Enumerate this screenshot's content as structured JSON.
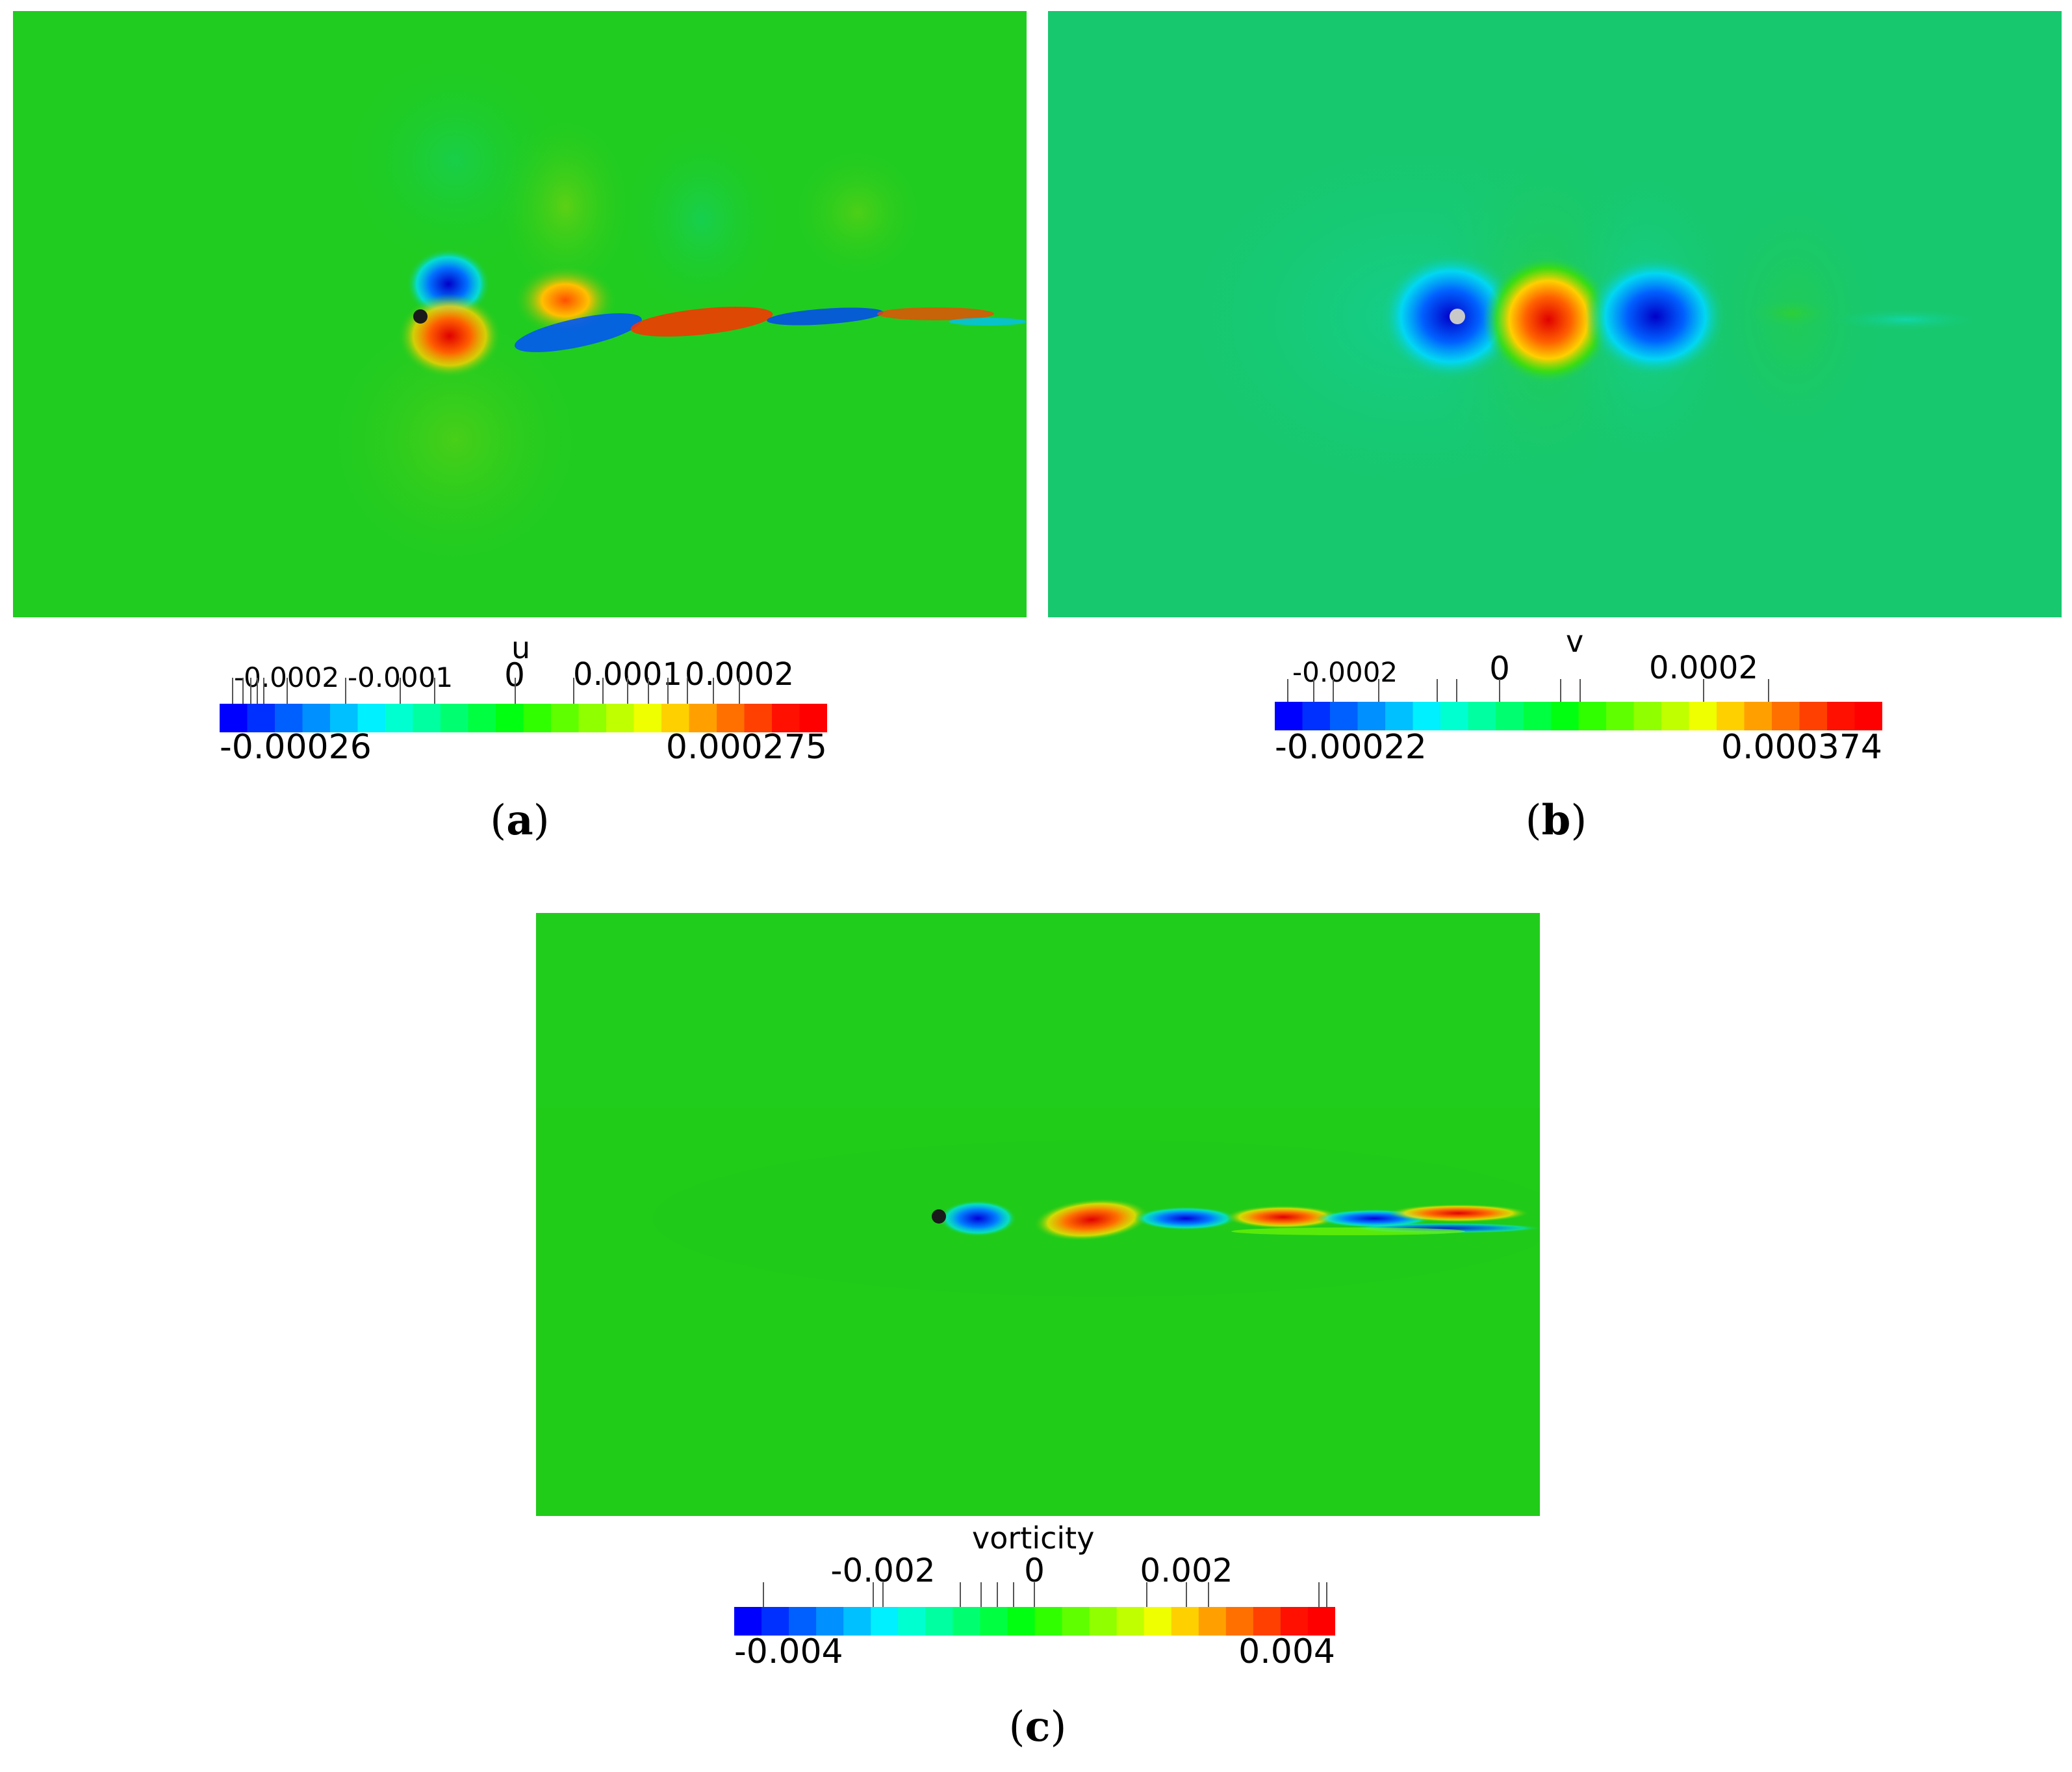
{
  "figure": {
    "panels": [
      {
        "id": "a",
        "caption_letter": "a",
        "field": "u",
        "background": "#1fcc1f",
        "colorbar": {
          "title": "u",
          "min_label": "-0.00026",
          "max_label": "0.000275",
          "tick_labels": [
            "-0.0002",
            "-0.0001",
            "0",
            "0.0001",
            "0.0002"
          ]
        },
        "body_marker_color": "#1a1a1a"
      },
      {
        "id": "b",
        "caption_letter": "b",
        "field": "v",
        "background": "#17c86e",
        "colorbar": {
          "title": "v",
          "min_label": "-0.00022",
          "max_label": "0.000374",
          "tick_labels": [
            "-0.0002",
            "0",
            "0.0002"
          ]
        },
        "body_marker_color": "#c8c8c8"
      },
      {
        "id": "c",
        "caption_letter": "c",
        "field": "vorticity",
        "background": "#1fcc14",
        "colorbar": {
          "title": "vorticity",
          "min_label": "-0.004",
          "max_label": "0.004",
          "tick_labels": [
            "-0.002",
            "0",
            "0.002"
          ]
        },
        "body_marker_color": "#1a1a1a"
      }
    ],
    "colormap": [
      "#0000ff",
      "#0030ff",
      "#0060ff",
      "#0090ff",
      "#00c0ff",
      "#00f0ff",
      "#00ffd0",
      "#00ffa0",
      "#00ff70",
      "#00ff40",
      "#00ff10",
      "#30ff00",
      "#60ff00",
      "#90ff00",
      "#c0ff00",
      "#f0ff00",
      "#ffd000",
      "#ffa000",
      "#ff7000",
      "#ff4000",
      "#ff1000",
      "#ff0000"
    ]
  }
}
